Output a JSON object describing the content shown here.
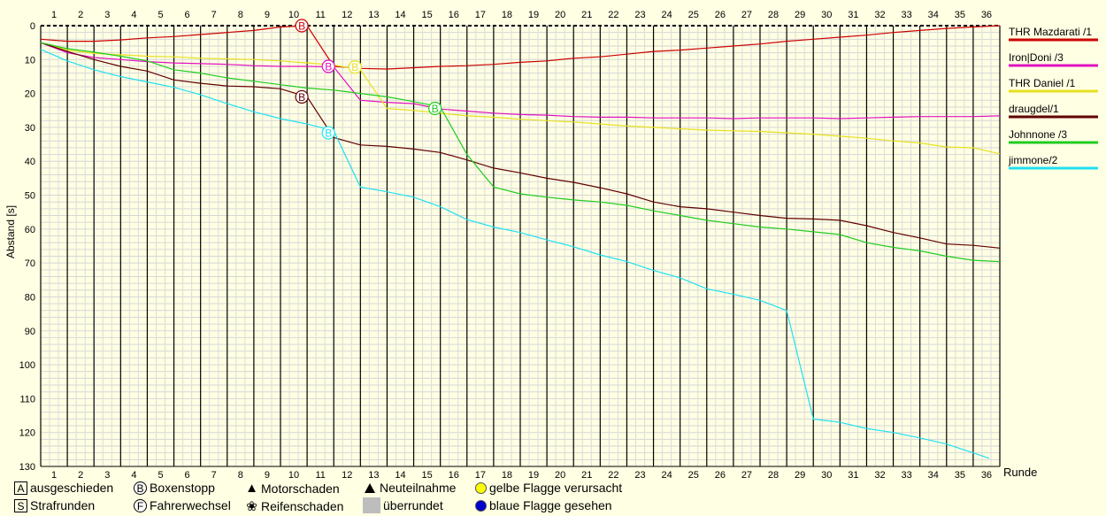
{
  "chart_data": {
    "type": "line",
    "xlabel": "Runde",
    "ylabel": "Abstand [s]",
    "laps": [
      1,
      2,
      3,
      4,
      5,
      6,
      7,
      8,
      9,
      10,
      11,
      12,
      13,
      14,
      15,
      16,
      17,
      18,
      19,
      20,
      21,
      22,
      23,
      24,
      25,
      26,
      27,
      28,
      29,
      30,
      31,
      32,
      33,
      34,
      35,
      36
    ],
    "y_ticks": [
      0,
      10,
      20,
      30,
      40,
      50,
      60,
      70,
      80,
      90,
      100,
      110,
      120,
      130
    ],
    "ylim": [
      0,
      130
    ],
    "y_inverted": true,
    "grid": true,
    "series": [
      {
        "name": "THR Mazdarati /1",
        "color": "#cc0000",
        "points": [
          [
            0,
            4
          ],
          [
            1,
            4.6
          ],
          [
            2,
            4.6
          ],
          [
            3,
            4.2
          ],
          [
            4,
            3.6
          ],
          [
            5,
            3.2
          ],
          [
            6,
            2.6
          ],
          [
            7,
            2
          ],
          [
            8,
            1.4
          ],
          [
            9,
            0.4
          ],
          [
            10,
            0
          ],
          [
            11,
            12
          ],
          [
            12,
            12.6
          ],
          [
            13,
            12.8
          ],
          [
            14,
            12.4
          ],
          [
            15,
            12
          ],
          [
            16,
            11.8
          ],
          [
            17,
            11.4
          ],
          [
            18,
            10.8
          ],
          [
            19,
            10.4
          ],
          [
            20,
            9.6
          ],
          [
            21,
            9.2
          ],
          [
            22,
            8.4
          ],
          [
            23,
            7.6
          ],
          [
            24,
            7.2
          ],
          [
            25,
            6.6
          ],
          [
            26,
            6
          ],
          [
            27,
            5.4
          ],
          [
            28,
            4.6
          ],
          [
            29,
            4
          ],
          [
            30,
            3.4
          ],
          [
            31,
            2.8
          ],
          [
            32,
            2
          ],
          [
            33,
            1.4
          ],
          [
            34,
            0.8
          ],
          [
            35,
            0.4
          ],
          [
            36,
            0
          ]
        ]
      },
      {
        "name": "Iron|Doni /3",
        "color": "#e010c0",
        "points": [
          [
            0,
            5
          ],
          [
            1,
            8
          ],
          [
            2,
            9.4
          ],
          [
            3,
            10
          ],
          [
            4,
            10.6
          ],
          [
            5,
            11
          ],
          [
            6,
            11.2
          ],
          [
            7,
            11.4
          ],
          [
            8,
            11.8
          ],
          [
            9,
            12
          ],
          [
            10,
            12
          ],
          [
            11,
            12.2
          ],
          [
            12,
            22
          ],
          [
            13,
            22.6
          ],
          [
            14,
            23
          ],
          [
            15,
            24.6
          ],
          [
            16,
            25.2
          ],
          [
            17,
            25.8
          ],
          [
            18,
            26.2
          ],
          [
            19,
            26.4
          ],
          [
            20,
            26.8
          ],
          [
            21,
            27
          ],
          [
            22,
            27
          ],
          [
            23,
            27.2
          ],
          [
            24,
            27.2
          ],
          [
            25,
            27.2
          ],
          [
            26,
            27.4
          ],
          [
            27,
            27.2
          ],
          [
            28,
            27.2
          ],
          [
            29,
            27.2
          ],
          [
            30,
            27.4
          ],
          [
            31,
            27.2
          ],
          [
            32,
            27
          ],
          [
            33,
            26.8
          ],
          [
            34,
            26.8
          ],
          [
            35,
            26.8
          ],
          [
            36,
            26.6
          ]
        ]
      },
      {
        "name": "THR Daniel /1",
        "color": "#e8e020",
        "points": [
          [
            0,
            5
          ],
          [
            1,
            7.2
          ],
          [
            2,
            8.2
          ],
          [
            3,
            8.6
          ],
          [
            4,
            9
          ],
          [
            5,
            9.2
          ],
          [
            6,
            9.6
          ],
          [
            7,
            9.8
          ],
          [
            8,
            10
          ],
          [
            9,
            10.4
          ],
          [
            10,
            11
          ],
          [
            11,
            11.6
          ],
          [
            12,
            13
          ],
          [
            13,
            24.4
          ],
          [
            14,
            25
          ],
          [
            15,
            25.8
          ],
          [
            16,
            26.6
          ],
          [
            17,
            27
          ],
          [
            18,
            27.6
          ],
          [
            19,
            28
          ],
          [
            20,
            28.4
          ],
          [
            21,
            29
          ],
          [
            22,
            29.6
          ],
          [
            23,
            30
          ],
          [
            24,
            30.4
          ],
          [
            25,
            30.8
          ],
          [
            26,
            31
          ],
          [
            27,
            31.2
          ],
          [
            28,
            31.6
          ],
          [
            29,
            32
          ],
          [
            30,
            32.6
          ],
          [
            31,
            33.2
          ],
          [
            32,
            34
          ],
          [
            33,
            34.6
          ],
          [
            34,
            35.8
          ],
          [
            35,
            36
          ],
          [
            36,
            37.8
          ]
        ]
      },
      {
        "name": "draugdel/1",
        "color": "#600000",
        "points": [
          [
            0,
            5
          ],
          [
            1,
            7.6
          ],
          [
            2,
            10
          ],
          [
            3,
            12
          ],
          [
            4,
            13.4
          ],
          [
            5,
            16
          ],
          [
            6,
            17
          ],
          [
            7,
            17.8
          ],
          [
            8,
            18
          ],
          [
            9,
            18.6
          ],
          [
            10,
            21
          ],
          [
            11,
            33
          ],
          [
            12,
            35.2
          ],
          [
            13,
            35.6
          ],
          [
            14,
            36.4
          ],
          [
            15,
            37.4
          ],
          [
            16,
            39.6
          ],
          [
            17,
            42
          ],
          [
            18,
            43.4
          ],
          [
            19,
            45
          ],
          [
            20,
            46.2
          ],
          [
            21,
            47.8
          ],
          [
            22,
            49.6
          ],
          [
            23,
            52
          ],
          [
            24,
            53.4
          ],
          [
            25,
            54
          ],
          [
            26,
            55
          ],
          [
            27,
            56
          ],
          [
            28,
            56.8
          ],
          [
            29,
            57
          ],
          [
            30,
            57.4
          ],
          [
            31,
            59
          ],
          [
            32,
            61
          ],
          [
            33,
            62.6
          ],
          [
            34,
            64.4
          ],
          [
            35,
            64.8
          ],
          [
            36,
            65.6
          ]
        ]
      },
      {
        "name": "Johnnone /3",
        "color": "#20cc20",
        "points": [
          [
            0,
            5
          ],
          [
            1,
            6.8
          ],
          [
            2,
            7.8
          ],
          [
            3,
            9
          ],
          [
            4,
            10.4
          ],
          [
            5,
            13
          ],
          [
            6,
            14
          ],
          [
            7,
            15.4
          ],
          [
            8,
            16.4
          ],
          [
            9,
            17.4
          ],
          [
            10,
            18.4
          ],
          [
            11,
            19
          ],
          [
            12,
            20
          ],
          [
            13,
            21
          ],
          [
            14,
            22.4
          ],
          [
            15,
            24
          ],
          [
            16,
            38
          ],
          [
            17,
            47.6
          ],
          [
            18,
            49.6
          ],
          [
            19,
            50.6
          ],
          [
            20,
            51.4
          ],
          [
            21,
            52
          ],
          [
            22,
            53
          ],
          [
            23,
            54.6
          ],
          [
            24,
            56
          ],
          [
            25,
            57.4
          ],
          [
            26,
            58.4
          ],
          [
            27,
            59.4
          ],
          [
            28,
            60
          ],
          [
            29,
            60.8
          ],
          [
            30,
            61.6
          ],
          [
            31,
            64
          ],
          [
            32,
            65.4
          ],
          [
            33,
            66.4
          ],
          [
            34,
            68
          ],
          [
            35,
            69.2
          ],
          [
            36,
            69.6
          ]
        ]
      },
      {
        "name": "jimmone/2",
        "color": "#20e0f0",
        "points": [
          [
            0,
            7
          ],
          [
            1,
            10.4
          ],
          [
            2,
            13
          ],
          [
            3,
            15
          ],
          [
            4,
            16.6
          ],
          [
            5,
            18.2
          ],
          [
            6,
            20.4
          ],
          [
            7,
            23
          ],
          [
            8,
            25.4
          ],
          [
            9,
            27.4
          ],
          [
            10,
            29
          ],
          [
            11,
            31
          ],
          [
            12,
            47.6
          ],
          [
            13,
            49
          ],
          [
            14,
            50.6
          ],
          [
            15,
            53.4
          ],
          [
            16,
            57.2
          ],
          [
            17,
            59.4
          ],
          [
            18,
            61
          ],
          [
            19,
            63.2
          ],
          [
            20,
            65.2
          ],
          [
            21,
            67.6
          ],
          [
            22,
            69.6
          ],
          [
            23,
            72.2
          ],
          [
            24,
            74.4
          ],
          [
            25,
            77.6
          ],
          [
            26,
            79.2
          ],
          [
            27,
            81
          ],
          [
            28,
            84
          ],
          [
            29,
            116
          ],
          [
            30,
            117
          ],
          [
            31,
            118.8
          ],
          [
            32,
            120
          ],
          [
            33,
            121.6
          ],
          [
            34,
            123.4
          ],
          [
            35,
            126
          ],
          [
            35.6,
            127.6
          ]
        ]
      }
    ],
    "pit_stops": [
      {
        "series": "THR Mazdarati /1",
        "lap": 9.8,
        "value": 0,
        "mark": "B"
      },
      {
        "series": "Iron|Doni /3",
        "lap": 10.8,
        "value": 12,
        "mark": "B"
      },
      {
        "series": "THR Daniel /1",
        "lap": 11.8,
        "value": 12.2,
        "mark": "B"
      },
      {
        "series": "draugdel/1",
        "lap": 9.8,
        "value": 21,
        "mark": "B"
      },
      {
        "series": "Johnnone /3",
        "lap": 14.8,
        "value": 24.4,
        "mark": "B"
      },
      {
        "series": "jimmone/2",
        "lap": 10.8,
        "value": 31.6,
        "mark": "B"
      }
    ]
  },
  "legend": {
    "ausgeschieden": {
      "symbol": "A",
      "label": "ausgeschieden"
    },
    "strafrunden": {
      "symbol": "S",
      "label": "Strafrunden"
    },
    "boxenstopp": {
      "symbol": "B",
      "label": "Boxenstopp"
    },
    "fahrerwechsel": {
      "symbol": "F",
      "label": "Fahrerwechsel"
    },
    "motorschaden": {
      "symbol": "M",
      "label": "Motorschaden"
    },
    "reifenschaden": {
      "symbol": "R",
      "label": "Reifenschaden"
    },
    "neuteilnahme": {
      "label": "Neuteilnahme"
    },
    "ueberrundet": {
      "label": "überrundet"
    },
    "gelbe_flagge": {
      "label": "gelbe Flagge verursacht",
      "color": "#ffff00"
    },
    "blaue_flagge": {
      "label": "blaue Flagge gesehen",
      "color": "#0000cc"
    }
  }
}
